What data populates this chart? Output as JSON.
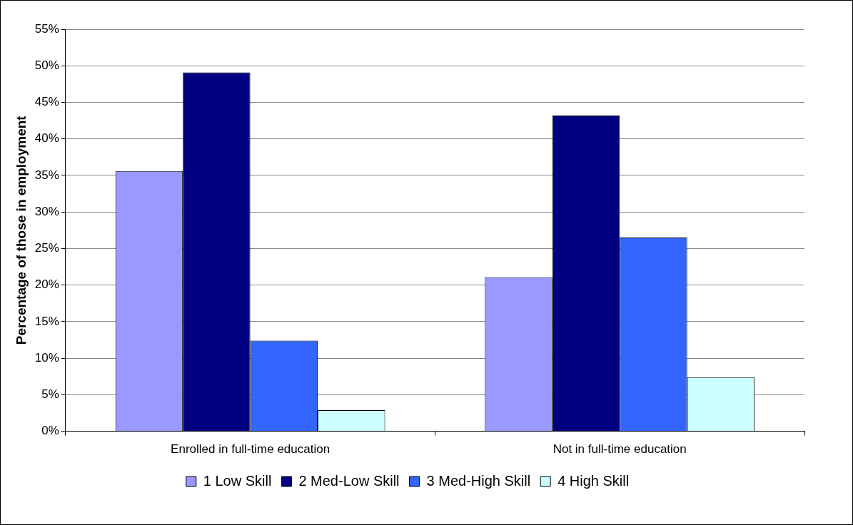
{
  "chart_data": {
    "type": "bar",
    "ylabel": "Percentage of those in employment",
    "categories": [
      "Enrolled in full-time education",
      "Not in full-time education"
    ],
    "series": [
      {
        "name": "1 Low Skill",
        "color": "#9999ff",
        "values": [
          35.6,
          21.1
        ]
      },
      {
        "name": "2 Med-Low Skill",
        "color": "#000080",
        "values": [
          49.1,
          43.2
        ]
      },
      {
        "name": "3 Med-High Skill",
        "color": "#3366ff",
        "values": [
          12.4,
          26.5
        ]
      },
      {
        "name": "4 High Skill",
        "color": "#ccffff",
        "values": [
          2.9,
          7.4
        ]
      }
    ],
    "ylim": [
      0,
      55
    ],
    "yticks": [
      {
        "value": 0,
        "label": "0%"
      },
      {
        "value": 5,
        "label": "5%"
      },
      {
        "value": 10,
        "label": "10%"
      },
      {
        "value": 15,
        "label": "15%"
      },
      {
        "value": 20,
        "label": "20%"
      },
      {
        "value": 25,
        "label": "25%"
      },
      {
        "value": 30,
        "label": "30%"
      },
      {
        "value": 35,
        "label": "35%"
      },
      {
        "value": 40,
        "label": "40%"
      },
      {
        "value": 45,
        "label": "45%"
      },
      {
        "value": 50,
        "label": "50%"
      },
      {
        "value": 55,
        "label": "55%"
      }
    ],
    "grid": "y",
    "legend": "bottom"
  }
}
